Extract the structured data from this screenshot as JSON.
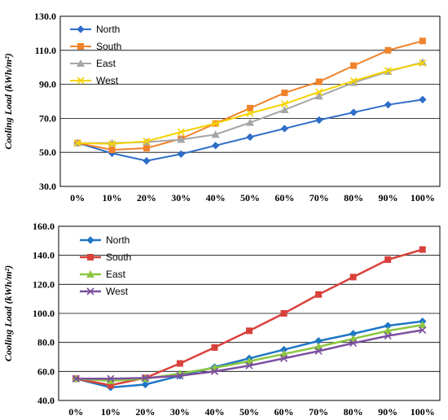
{
  "chart_data": [
    {
      "type": "line",
      "ylabel": "Cooling Load (kWh/m²)",
      "ylim": [
        30,
        130
      ],
      "yticks": [
        "30.0",
        "50.0",
        "70.0",
        "90.0",
        "110.0",
        "130.0"
      ],
      "categories": [
        "0%",
        "10%",
        "20%",
        "30%",
        "40%",
        "50%",
        "60%",
        "70%",
        "80%",
        "90%",
        "100%"
      ],
      "grid": true,
      "legend": "top-left",
      "series": [
        {
          "name": "North",
          "color": "#2E6EC9",
          "marker": "diamond",
          "values": [
            55.5,
            49.5,
            45.0,
            49.0,
            54.0,
            59.0,
            64.0,
            69.0,
            73.5,
            78.0,
            81.0
          ]
        },
        {
          "name": "South",
          "color": "#F0822A",
          "marker": "square",
          "values": [
            55.5,
            51.5,
            52.5,
            58.0,
            67.0,
            76.0,
            85.0,
            91.5,
            101.0,
            110.0,
            115.5
          ]
        },
        {
          "name": "East",
          "color": "#A6A6A6",
          "marker": "triangle",
          "values": [
            55.5,
            55.5,
            56.0,
            57.5,
            60.5,
            67.5,
            75.0,
            83.0,
            91.0,
            97.5,
            103.0
          ]
        },
        {
          "name": "West",
          "color": "#F5D300",
          "marker": "x",
          "values": [
            55.5,
            55.0,
            56.5,
            62.0,
            67.0,
            73.0,
            78.5,
            85.5,
            92.0,
            98.0,
            102.5
          ]
        }
      ]
    },
    {
      "type": "line",
      "ylabel": "Cooling Load (kWh/m²)",
      "ylim": [
        40,
        160
      ],
      "yticks": [
        "40.0",
        "60.0",
        "80.0",
        "100.0",
        "120.0",
        "140.0",
        "160.0"
      ],
      "categories": [
        "0%",
        "10%",
        "20%",
        "30%",
        "40%",
        "50%",
        "60%",
        "70%",
        "80%",
        "90%",
        "100%"
      ],
      "grid": true,
      "legend": "top-left",
      "series": [
        {
          "name": "North",
          "color": "#1F77C4",
          "marker": "diamond",
          "values": [
            55.0,
            49.0,
            51.0,
            57.0,
            63.0,
            69.0,
            75.0,
            81.0,
            86.0,
            91.5,
            94.5
          ]
        },
        {
          "name": "South",
          "color": "#D9413B",
          "marker": "square",
          "values": [
            55.0,
            50.5,
            55.5,
            65.5,
            76.5,
            88.0,
            100.0,
            113.0,
            125.0,
            137.0,
            144.0
          ]
        },
        {
          "name": "East",
          "color": "#8DC63F",
          "marker": "triangle",
          "values": [
            55.0,
            53.5,
            55.0,
            58.5,
            62.5,
            67.0,
            72.0,
            77.0,
            82.5,
            88.0,
            92.0
          ]
        },
        {
          "name": "West",
          "color": "#7B4FA0",
          "marker": "x",
          "values": [
            55.0,
            55.0,
            55.5,
            57.0,
            60.0,
            64.0,
            69.0,
            74.0,
            79.5,
            84.5,
            88.5
          ]
        }
      ]
    }
  ]
}
